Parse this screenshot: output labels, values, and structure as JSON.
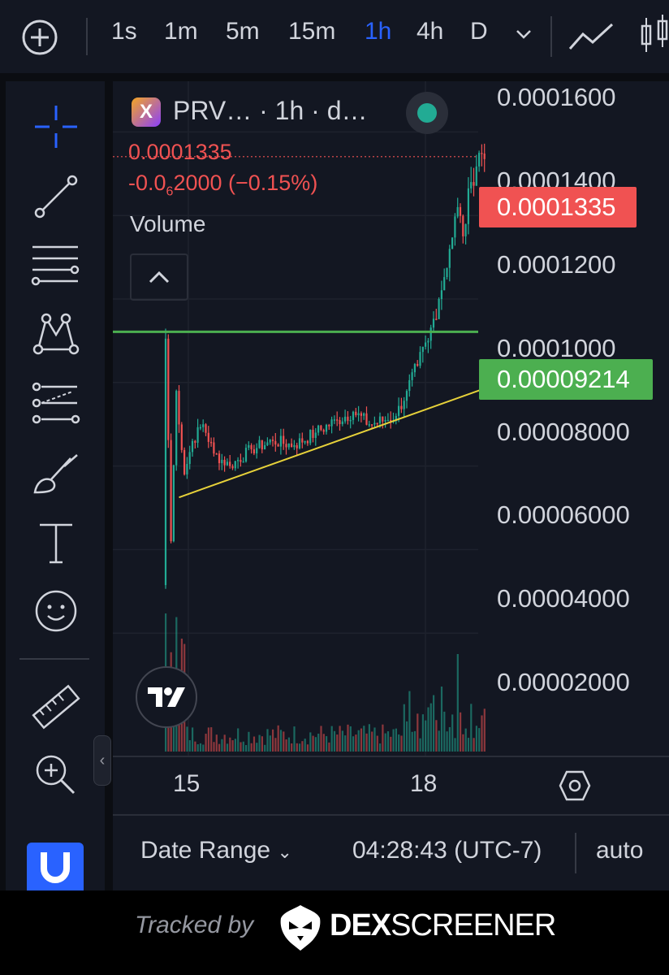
{
  "toolbar": {
    "add_icon": "plus-circle-icon",
    "timeframes": [
      "1s",
      "1m",
      "5m",
      "15m",
      "1h",
      "4h",
      "D"
    ],
    "active_timeframe": "1h"
  },
  "legend": {
    "symbol": "PRV… · 1h · d…",
    "price": "0.0001335",
    "change_prefix": "-0.0",
    "change_sub": "6",
    "change_suffix": "2000 (−0.15%)",
    "volume_label": "Volume"
  },
  "price_axis": {
    "labels": [
      "0.0001600",
      "0.0001400",
      "0.0001200",
      "0.0001000",
      "0.00008000",
      "0.00006000",
      "0.00004000",
      "0.00002000"
    ],
    "last_price_tag": "0.0001335",
    "level_tag": "0.00009214"
  },
  "time_axis": {
    "labels": [
      "15",
      "18"
    ]
  },
  "bottom_bar": {
    "date_range": "Date Range",
    "time": "04:28:43 (UTC-7)",
    "scale": "auto"
  },
  "footer": {
    "tracked_by": "Tracked by",
    "brand_bold": "DEX",
    "brand_regular": "SCREENER"
  },
  "colors": {
    "up": "#22ab94",
    "down": "#f05252",
    "level_line": "#4caf50",
    "trend_line": "#e6d13a",
    "accent": "#2962ff"
  },
  "chart_data": {
    "type": "candlestick",
    "symbol": "PRV",
    "interval": "1h",
    "ylim": [
      0,
      0.00016
    ],
    "y_ticks": [
      2e-05,
      4e-05,
      6e-05,
      8e-05,
      0.0001,
      0.00012,
      0.00014,
      0.00016
    ],
    "x_tick_labels": [
      "15",
      "18"
    ],
    "last_price": 0.0001335,
    "horizontal_level": 9.214e-05,
    "trend_line": {
      "start": {
        "x_index": 5,
        "price": 5.25e-05
      },
      "end": {
        "x_index": 145,
        "price": 8.45e-05
      }
    },
    "anchors": [
      {
        "i": 0,
        "p": 9.05e-05
      },
      {
        "i": 2,
        "p": 4.2e-05
      },
      {
        "i": 4,
        "p": 7.8e-05
      },
      {
        "i": 7,
        "p": 5.8e-05
      },
      {
        "i": 10,
        "p": 6.6e-05
      },
      {
        "i": 14,
        "p": 7e-05
      },
      {
        "i": 18,
        "p": 6.3e-05
      },
      {
        "i": 24,
        "p": 6e-05
      },
      {
        "i": 32,
        "p": 6.4e-05
      },
      {
        "i": 40,
        "p": 6.6e-05
      },
      {
        "i": 48,
        "p": 6.5e-05
      },
      {
        "i": 56,
        "p": 6.8e-05
      },
      {
        "i": 64,
        "p": 7.1e-05
      },
      {
        "i": 70,
        "p": 7.3e-05
      },
      {
        "i": 76,
        "p": 7e-05
      },
      {
        "i": 82,
        "p": 7.1e-05
      },
      {
        "i": 86,
        "p": 7.2e-05
      },
      {
        "i": 90,
        "p": 7.8e-05
      },
      {
        "i": 94,
        "p": 8.4e-05
      },
      {
        "i": 98,
        "p": 9e-05
      },
      {
        "i": 102,
        "p": 0.0001
      },
      {
        "i": 106,
        "p": 0.000112
      },
      {
        "i": 109,
        "p": 0.000122
      },
      {
        "i": 111,
        "p": 0.000115
      },
      {
        "i": 114,
        "p": 0.000128
      },
      {
        "i": 117,
        "p": 0.000135
      },
      {
        "i": 119,
        "p": 0.0001335
      }
    ],
    "volume_peak_index": 0
  }
}
